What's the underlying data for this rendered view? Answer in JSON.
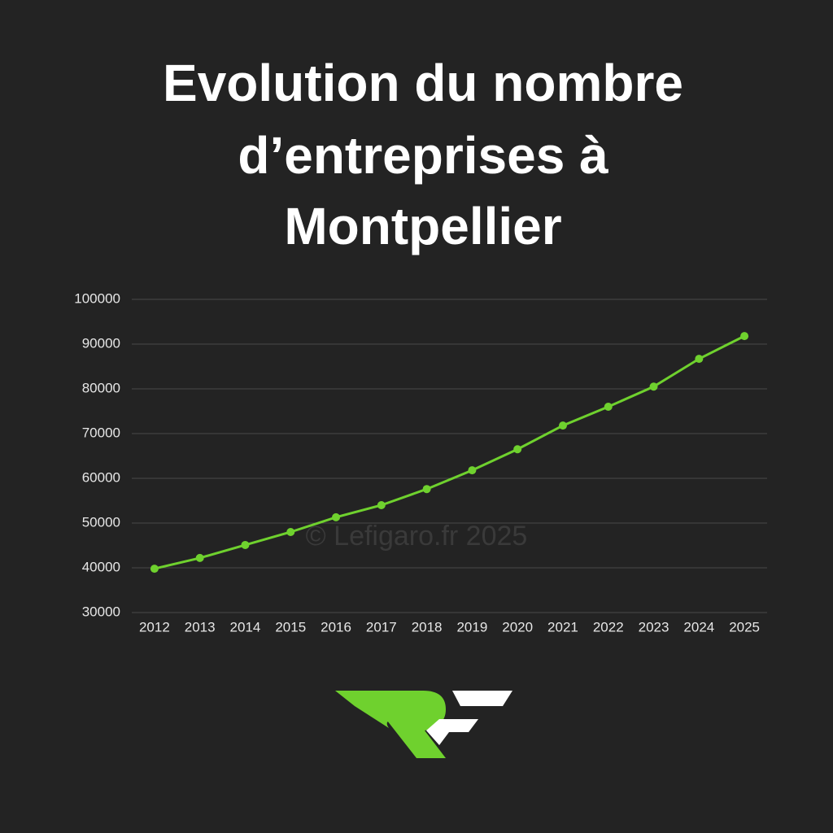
{
  "chart_data": {
    "type": "line",
    "title": [
      "Evolution du nombre",
      "d’entreprises à"
    ],
    "title_highlight": "Montpellier",
    "watermark": "© Lefigaro.fr 2025",
    "categories": [
      "2012",
      "2013",
      "2014",
      "2015",
      "2016",
      "2017",
      "2018",
      "2019",
      "2020",
      "2021",
      "2022",
      "2023",
      "2024",
      "2025"
    ],
    "values": [
      39800,
      42200,
      45100,
      48000,
      51300,
      54000,
      57600,
      61800,
      66500,
      71800,
      76000,
      80500,
      86700,
      91800
    ],
    "color": "#6fd12e",
    "ylim": [
      30000,
      100000
    ],
    "yticks": [
      30000,
      40000,
      50000,
      60000,
      70000,
      80000,
      90000,
      100000
    ],
    "grid": true
  }
}
